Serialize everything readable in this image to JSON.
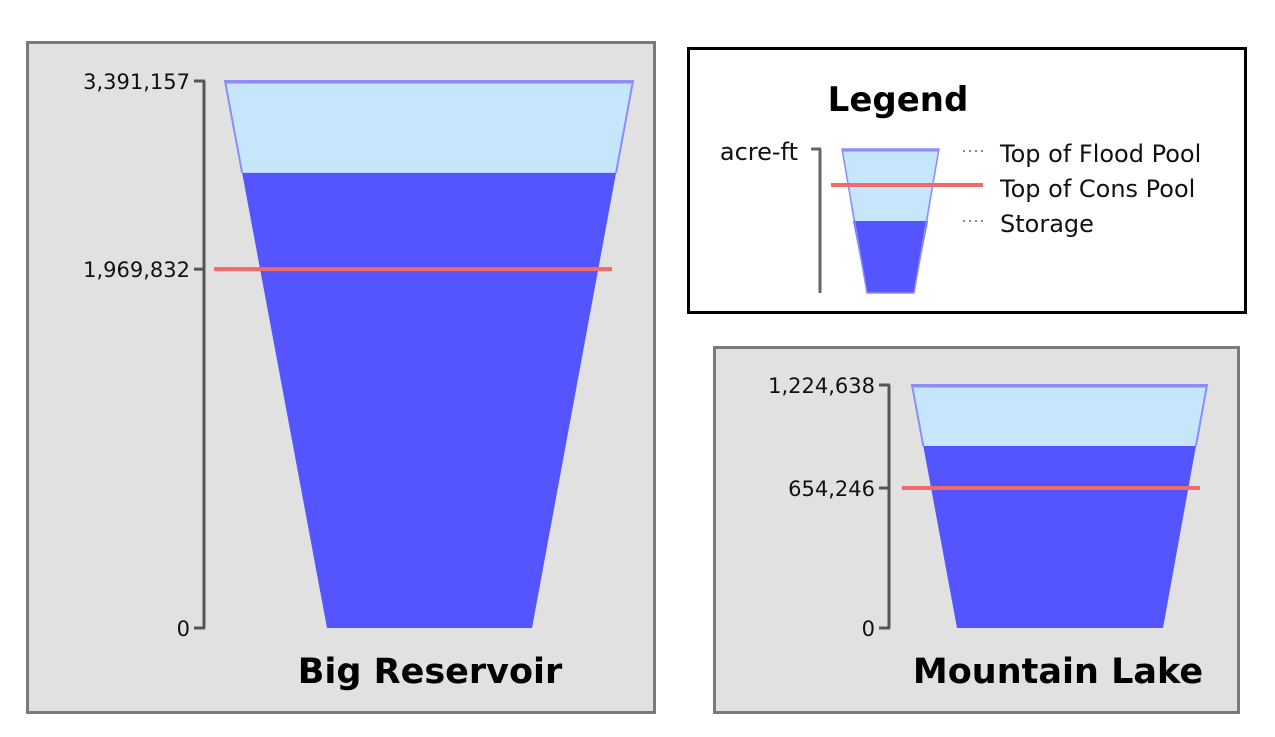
{
  "legend": {
    "title": "Legend",
    "unit": "acre-ft",
    "items": [
      "Top of Flood Pool",
      "Top of Cons Pool",
      "Storage"
    ]
  },
  "colors": {
    "panel_bg": "#e1e1e1",
    "panel_border": "#7a7a7a",
    "flood_pool": "#c5e6fd",
    "flood_outline": "#8c8cff",
    "storage": "#5555ff",
    "cons_line": "#f06a6a",
    "axis": "#555555"
  },
  "chart_data": [
    {
      "type": "reservoir-storage",
      "title": "Big Reservoir",
      "unit": "acre-ft",
      "ticks": [
        "0",
        "1,969,832",
        "3,391,157"
      ],
      "tick_values": [
        0,
        1969832,
        3391157
      ],
      "top_of_flood_pool": 3391157,
      "top_of_cons_pool": 1969832,
      "storage": 2697000
    },
    {
      "type": "reservoir-storage",
      "title": "Mountain Lake",
      "unit": "acre-ft",
      "ticks": [
        "0",
        "654,246",
        "1,224,638"
      ],
      "tick_values": [
        0,
        654246,
        1224638
      ],
      "top_of_flood_pool": 1224638,
      "top_of_cons_pool": 654246,
      "storage": 887000
    }
  ]
}
